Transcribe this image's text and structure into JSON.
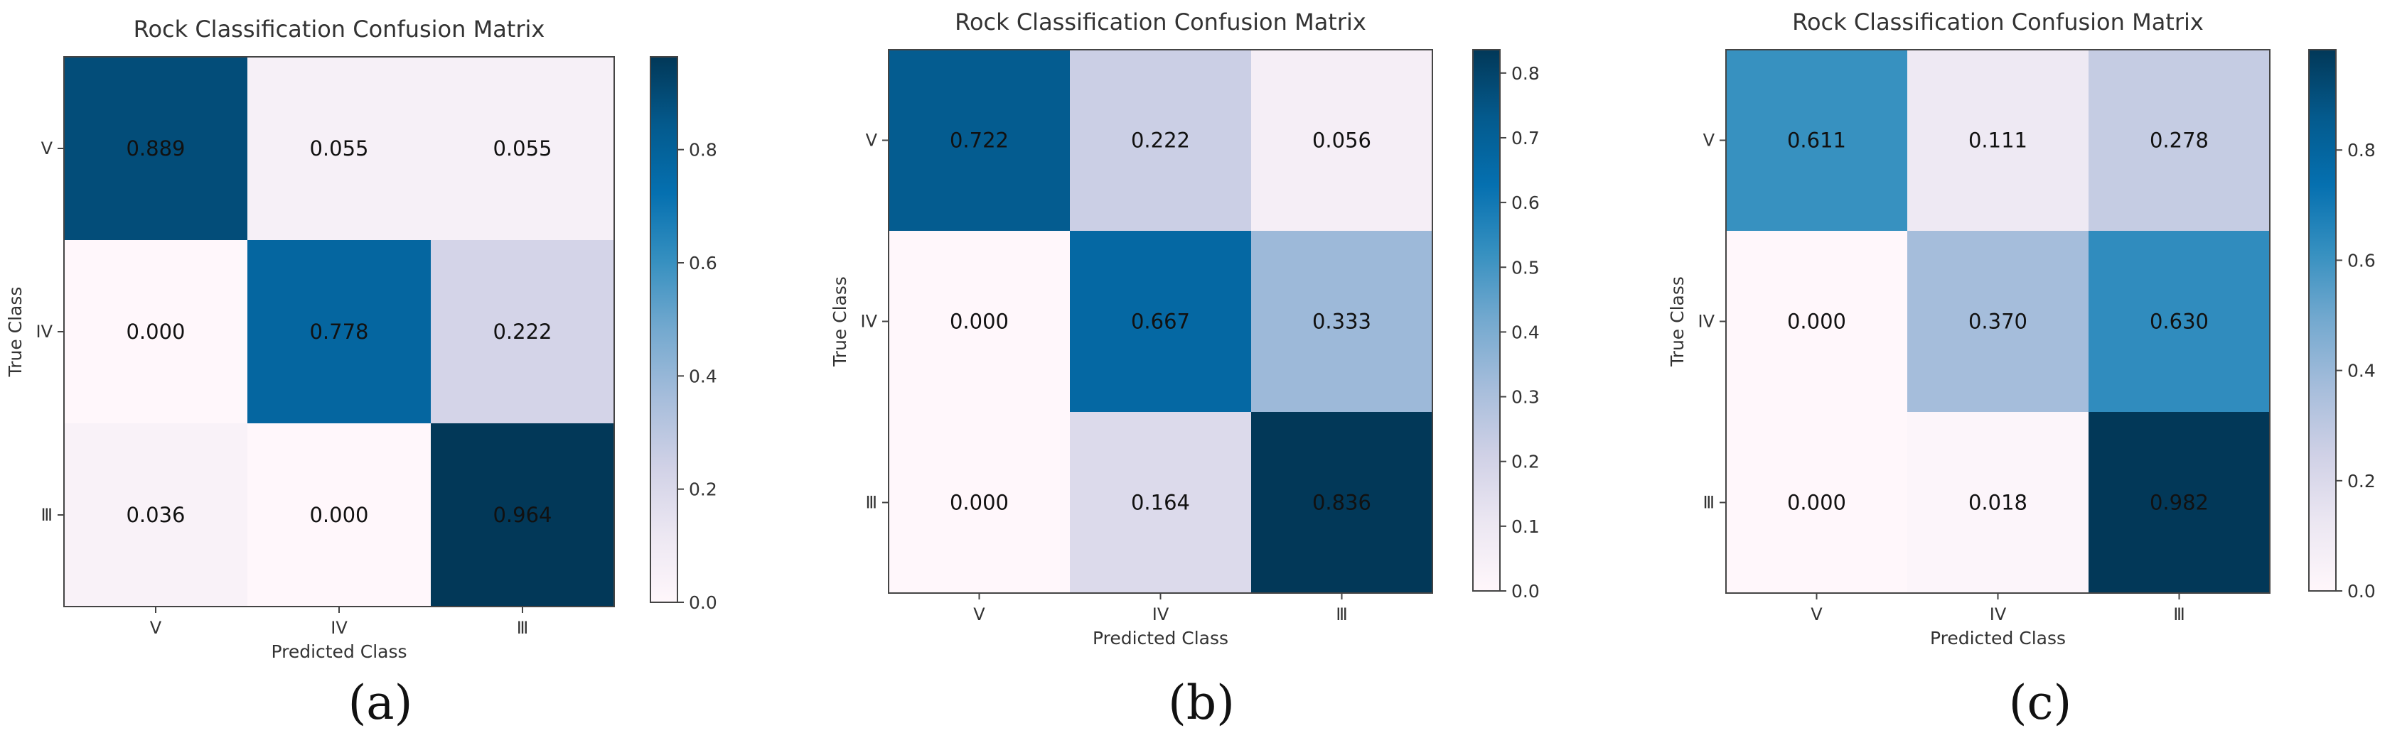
{
  "figure": {
    "panel_labels": [
      "(a)",
      "(b)",
      "(c)"
    ]
  },
  "chart_data": [
    {
      "type": "heatmap",
      "title": "Rock Classification Confusion Matrix",
      "xlabel": "Predicted Class",
      "ylabel": "True Class",
      "x_categories": [
        "V",
        "IV",
        "Ⅲ"
      ],
      "y_categories": [
        "V",
        "IV",
        "Ⅲ"
      ],
      "cells": [
        [
          "0.889",
          "0.055",
          "0.055"
        ],
        [
          "0.000",
          "0.778",
          "0.222"
        ],
        [
          "0.036",
          "0.000",
          "0.964"
        ]
      ],
      "colorbar": {
        "range": [
          0,
          0.964
        ],
        "ticks": [
          "0.0",
          "0.2",
          "0.4",
          "0.6",
          "0.8"
        ],
        "tick_values": [
          0,
          0.2,
          0.4,
          0.6,
          0.8
        ]
      },
      "colormap": "PuBu"
    },
    {
      "type": "heatmap",
      "title": "Rock Classification Confusion Matrix",
      "xlabel": "Predicted Class",
      "ylabel": "True Class",
      "x_categories": [
        "V",
        "IV",
        "Ⅲ"
      ],
      "y_categories": [
        "V",
        "IV",
        "Ⅲ"
      ],
      "cells": [
        [
          "0.722",
          "0.222",
          "0.056"
        ],
        [
          "0.000",
          "0.667",
          "0.333"
        ],
        [
          "0.000",
          "0.164",
          "0.836"
        ]
      ],
      "colorbar": {
        "range": [
          0,
          0.836
        ],
        "ticks": [
          "0.0",
          "0.1",
          "0.2",
          "0.3",
          "0.4",
          "0.5",
          "0.6",
          "0.7",
          "0.8"
        ],
        "tick_values": [
          0,
          0.1,
          0.2,
          0.3,
          0.4,
          0.5,
          0.6,
          0.7,
          0.8
        ]
      },
      "colormap": "PuBu"
    },
    {
      "type": "heatmap",
      "title": "Rock Classification Confusion Matrix",
      "xlabel": "Predicted Class",
      "ylabel": "True Class",
      "x_categories": [
        "V",
        "IV",
        "Ⅲ"
      ],
      "y_categories": [
        "V",
        "IV",
        "Ⅲ"
      ],
      "cells": [
        [
          "0.611",
          "0.111",
          "0.278"
        ],
        [
          "0.000",
          "0.370",
          "0.630"
        ],
        [
          "0.000",
          "0.018",
          "0.982"
        ]
      ],
      "colorbar": {
        "range": [
          0,
          0.982
        ],
        "ticks": [
          "0.0",
          "0.2",
          "0.4",
          "0.6",
          "0.8"
        ],
        "tick_values": [
          0,
          0.2,
          0.4,
          0.6,
          0.8
        ]
      },
      "colormap": "PuBu"
    }
  ]
}
